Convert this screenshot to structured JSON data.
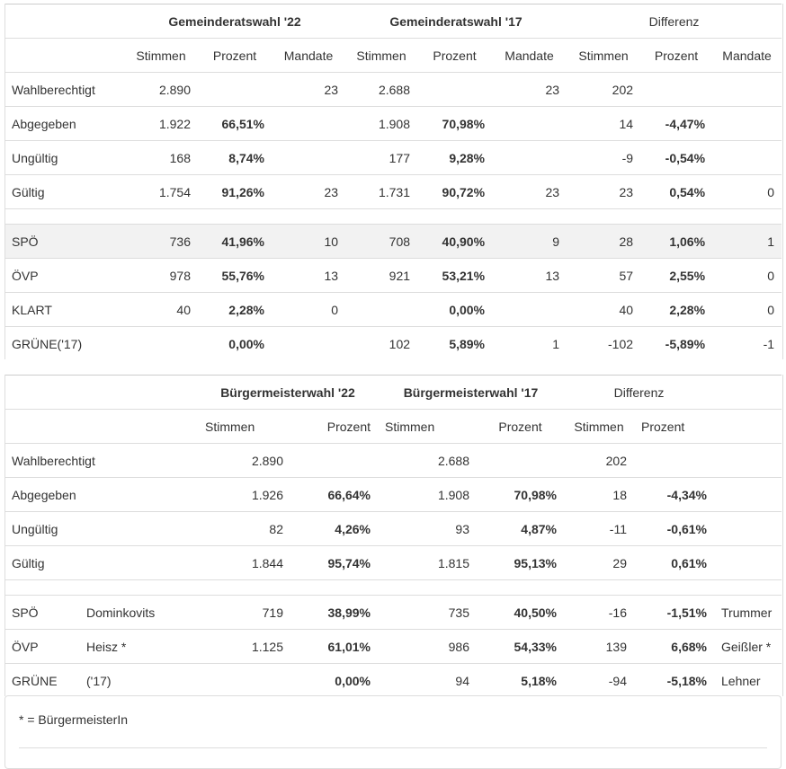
{
  "gemeinderat": {
    "group_headers": [
      "Gemeinderatswahl '22",
      "Gemeinderatswahl '17",
      "Differenz"
    ],
    "sub_headers": [
      "Stimmen",
      "Prozent",
      "Mandate",
      "Stimmen",
      "Prozent",
      "Mandate",
      "Stimmen",
      "Prozent",
      "Mandate"
    ],
    "rows": [
      {
        "label": "Wahlberechtigt",
        "cells": [
          "2.890",
          "",
          "23",
          "2.688",
          "",
          "23",
          "202",
          "",
          ""
        ]
      },
      {
        "label": "Abgegeben",
        "cells": [
          "1.922",
          "66,51%",
          "",
          "1.908",
          "70,98%",
          "",
          "14",
          "-4,47%",
          ""
        ]
      },
      {
        "label": "Ungültig",
        "cells": [
          "168",
          "8,74%",
          "",
          "177",
          "9,28%",
          "",
          "-9",
          "-0,54%",
          ""
        ]
      },
      {
        "label": "Gültig",
        "cells": [
          "1.754",
          "91,26%",
          "23",
          "1.731",
          "90,72%",
          "23",
          "23",
          "0,54%",
          "0"
        ]
      }
    ],
    "parties": [
      {
        "label": "SPÖ",
        "cells": [
          "736",
          "41,96%",
          "10",
          "708",
          "40,90%",
          "9",
          "28",
          "1,06%",
          "1"
        ]
      },
      {
        "label": "ÖVP",
        "cells": [
          "978",
          "55,76%",
          "13",
          "921",
          "53,21%",
          "13",
          "57",
          "2,55%",
          "0"
        ]
      },
      {
        "label": "KLART",
        "cells": [
          "40",
          "2,28%",
          "0",
          "",
          "0,00%",
          "",
          "40",
          "2,28%",
          "0"
        ]
      },
      {
        "label": "GRÜNE('17)",
        "cells": [
          "",
          "0,00%",
          "",
          "102",
          "5,89%",
          "1",
          "-102",
          "-5,89%",
          "-1"
        ]
      }
    ]
  },
  "buergermeister": {
    "group_headers": [
      "Bürgermeisterwahl '22",
      "Bürgermeisterwahl '17",
      "Differenz"
    ],
    "sub_headers": [
      "Stimmen",
      "Prozent",
      "Stimmen",
      "Prozent",
      "Stimmen",
      "Prozent"
    ],
    "rows": [
      {
        "label": "Wahlberechtigt",
        "cells": [
          "2.890",
          "",
          "2.688",
          "",
          "202",
          ""
        ]
      },
      {
        "label": "Abgegeben",
        "cells": [
          "1.926",
          "66,64%",
          "1.908",
          "70,98%",
          "18",
          "-4,34%"
        ]
      },
      {
        "label": "Ungültig",
        "cells": [
          "82",
          "4,26%",
          "93",
          "4,87%",
          "-11",
          "-0,61%"
        ]
      },
      {
        "label": "Gültig",
        "cells": [
          "1.844",
          "95,74%",
          "1.815",
          "95,13%",
          "29",
          "0,61%"
        ]
      }
    ],
    "candidates": [
      {
        "party": "SPÖ",
        "name": "Dominkovits",
        "cells": [
          "719",
          "38,99%",
          "735",
          "40,50%",
          "-16",
          "-1,51%"
        ],
        "prev_name": "Trummer"
      },
      {
        "party": "ÖVP",
        "name": "Heisz *",
        "cells": [
          "1.125",
          "61,01%",
          "986",
          "54,33%",
          "139",
          "6,68%"
        ],
        "prev_name": "Geißler *"
      },
      {
        "party": "GRÜNE",
        "name": "('17)",
        "cells": [
          "",
          "0,00%",
          "94",
          "5,18%",
          "-94",
          "-5,18%"
        ],
        "prev_name": "Lehner"
      }
    ]
  },
  "footnote": "* = BürgermeisterIn",
  "colors": {
    "border": "#dddddd",
    "shade": "#f2f2f2",
    "text": "#333333"
  }
}
